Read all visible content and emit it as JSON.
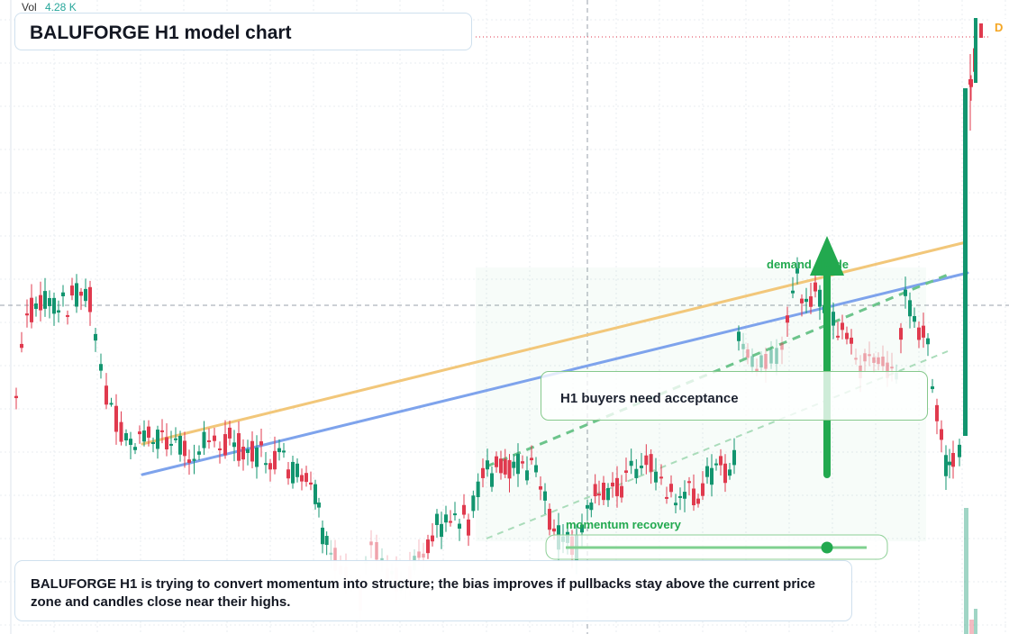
{
  "header": {
    "vol_label": "Vol",
    "vol_value": "4.28 K"
  },
  "title": "BALUFORGE H1 model chart",
  "badge": "D",
  "callouts": {
    "acceptance": "H1 buyers need acceptance",
    "demand": "demand divide",
    "momentum": "momentum recovery"
  },
  "note": "BALUFORGE H1 is trying to convert momentum into structure; the bias improves if pullbacks stay above the current price zone and candles close near their highs.",
  "colors": {
    "up": "#12956f",
    "down": "#e03a4e",
    "green_accent": "#22a94f",
    "blue_line": "#7ea3ec",
    "orange_line": "#f2c77a"
  }
}
